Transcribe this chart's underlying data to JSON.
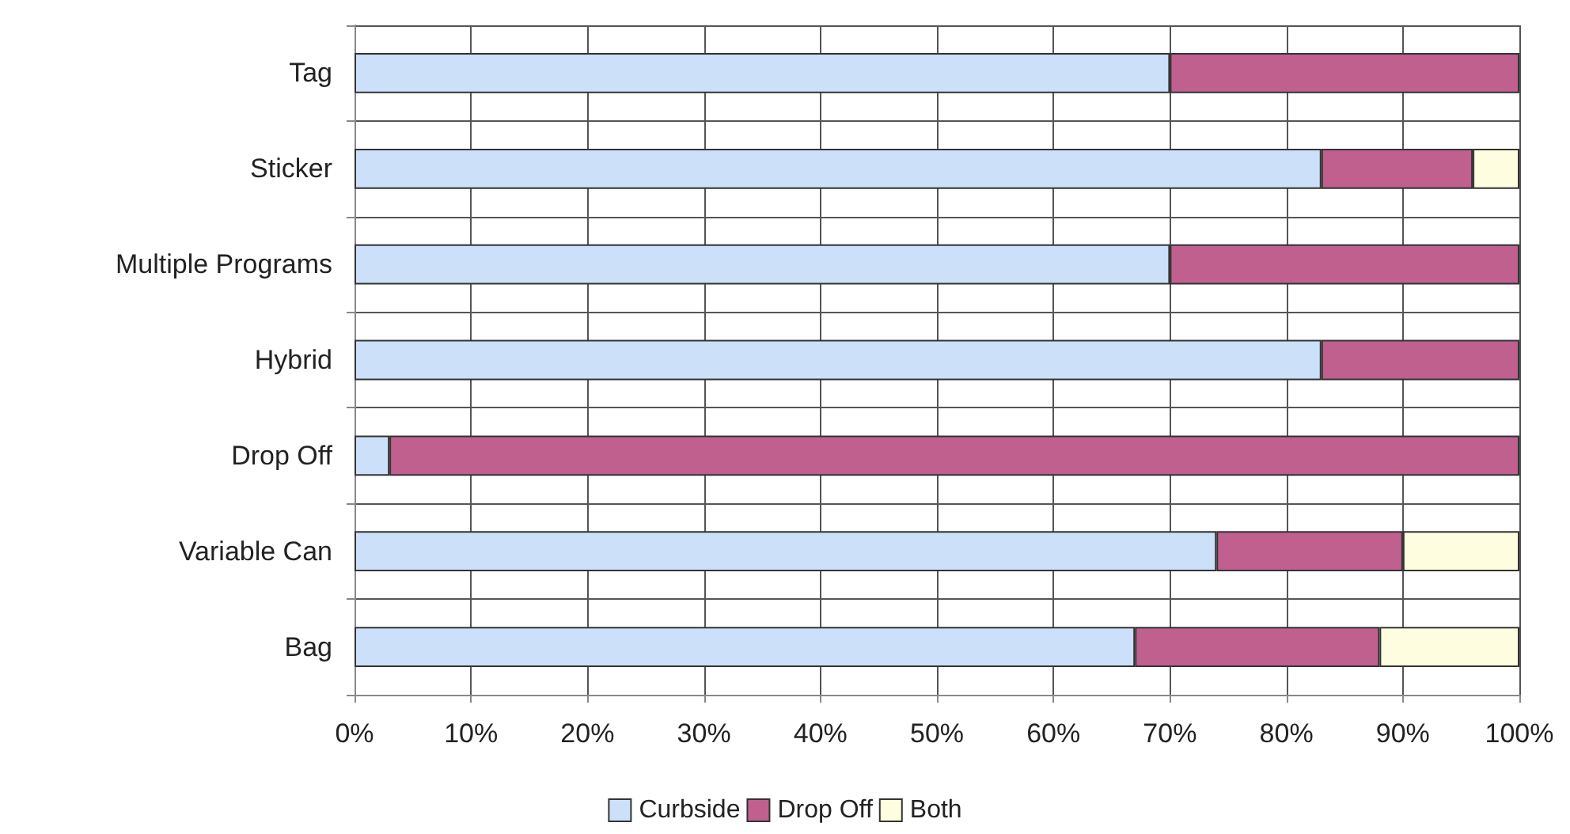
{
  "chart_data": {
    "type": "bar",
    "orientation": "horizontal",
    "stacked": true,
    "categories": [
      "Tag",
      "Sticker",
      "Multiple Programs",
      "Hybrid",
      "Drop Off",
      "Variable Can",
      "Bag"
    ],
    "series": [
      {
        "name": "Curbside",
        "color": "#cce0fa",
        "values": [
          70,
          83,
          70,
          83,
          3,
          74,
          67
        ]
      },
      {
        "name": "Drop Off",
        "color": "#c0608f",
        "values": [
          30,
          13,
          30,
          17,
          97,
          16,
          21
        ]
      },
      {
        "name": "Both",
        "color": "#fffde0",
        "values": [
          0,
          4,
          0,
          0,
          0,
          10,
          12
        ]
      }
    ],
    "xlim": [
      0,
      100
    ],
    "xticks": [
      {
        "value": 0,
        "label": "0%"
      },
      {
        "value": 10,
        "label": "10%"
      },
      {
        "value": 20,
        "label": "20%"
      },
      {
        "value": 30,
        "label": "30%"
      },
      {
        "value": 40,
        "label": "40%"
      },
      {
        "value": 50,
        "label": "50%"
      },
      {
        "value": 60,
        "label": "60%"
      },
      {
        "value": 70,
        "label": "70%"
      },
      {
        "value": 80,
        "label": "80%"
      },
      {
        "value": 90,
        "label": "90%"
      },
      {
        "value": 100,
        "label": "100%"
      }
    ],
    "grid": true,
    "legend": "bottom"
  }
}
